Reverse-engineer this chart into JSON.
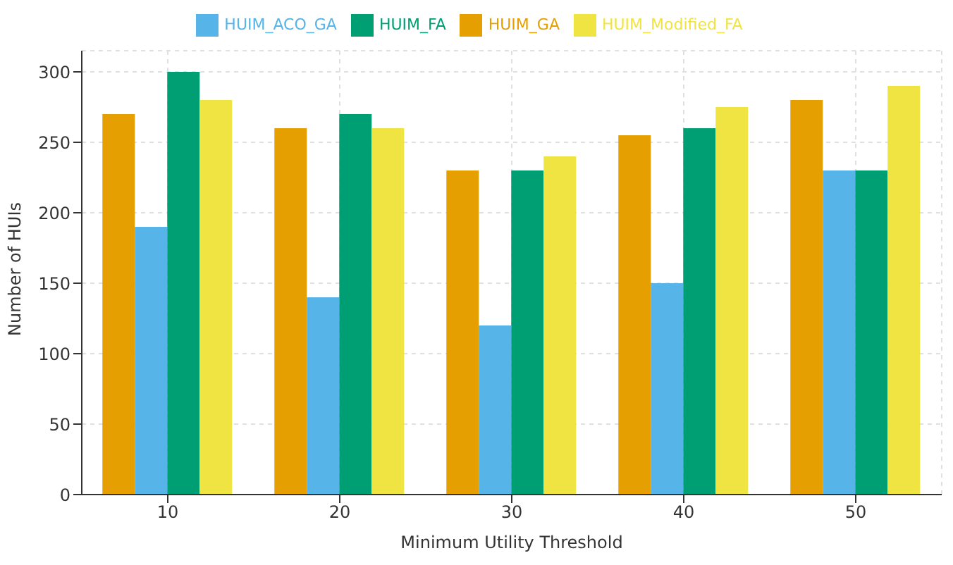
{
  "chart_data": {
    "type": "bar",
    "xlabel": "Minimum Utility Threshold",
    "ylabel": "Number of HUIs",
    "categories": [
      "10",
      "20",
      "30",
      "40",
      "50"
    ],
    "series": [
      {
        "name": "HUIM_GA",
        "color": "#e69f00",
        "values": [
          270,
          260,
          230,
          255,
          280
        ]
      },
      {
        "name": "HUIM_ACO_GA",
        "color": "#56b4e9",
        "values": [
          190,
          140,
          120,
          150,
          230
        ]
      },
      {
        "name": "HUIM_FA",
        "color": "#009e73",
        "values": [
          300,
          270,
          230,
          260,
          230
        ]
      },
      {
        "name": "HUIM_Modified_FA",
        "color": "#f0e442",
        "values": [
          280,
          260,
          240,
          275,
          290
        ]
      }
    ],
    "ylim": [
      0,
      315
    ],
    "yticks": [
      0,
      50,
      100,
      150,
      200,
      250,
      300
    ],
    "grid": true,
    "legend": "top"
  }
}
